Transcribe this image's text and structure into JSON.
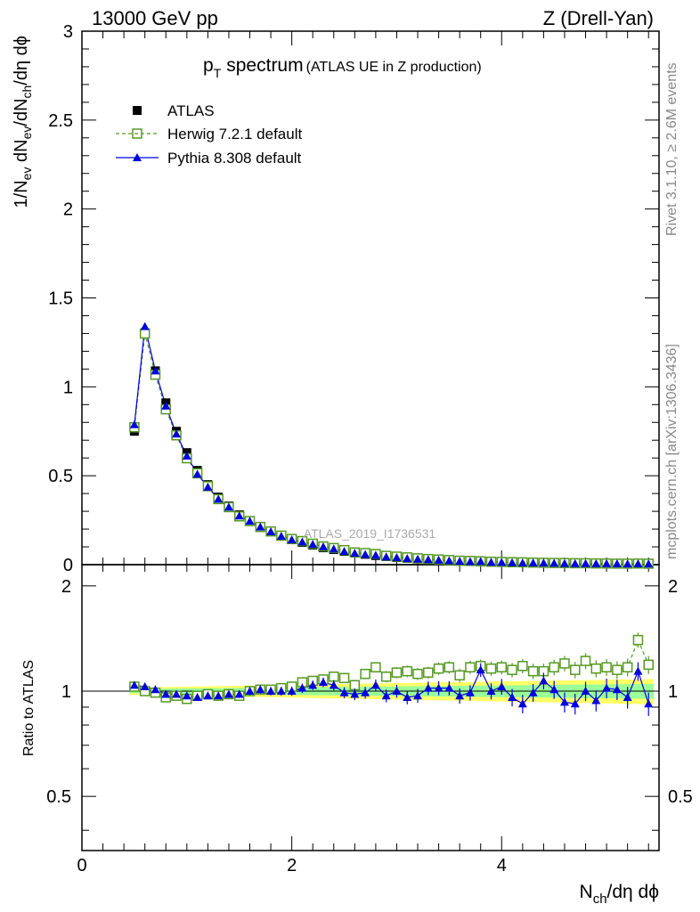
{
  "header": {
    "left": "13000 GeV pp",
    "right": "Z (Drell-Yan)"
  },
  "side_labels": {
    "rivet": "Rivet 3.1.10, ≥ 2.6M events",
    "mcplots": "mcplots.cern.ch [arXiv:1306.3436]"
  },
  "colors": {
    "atlas": "#000000",
    "herwig": "#559922",
    "pythia": "#0000dd",
    "band_inner": "#ffff66",
    "band_outer": "#99ff99"
  },
  "chart_data": {
    "type": "line",
    "title_main": "p",
    "title_sub": "T",
    "title_rest": "spectrum",
    "title_paren": "(ATLAS UE in Z production)",
    "watermark": "ATLAS_2019_I1736531",
    "ylabel_top": "1/N_ev dN_ev/dN_ch/dη dϕ",
    "ylabel_bottom": "Ratio to ATLAS",
    "xlabel": "N_ch/dη dϕ",
    "xlim": [
      0,
      5.5
    ],
    "ylim_top": [
      0,
      3
    ],
    "ylim_bottom": [
      0.35,
      2.3
    ],
    "xticks": [
      "0",
      "2",
      "4"
    ],
    "yticks_top": [
      "0",
      "0.5",
      "1",
      "1.5",
      "2",
      "2.5",
      "3"
    ],
    "yticks_bottom": [
      "0.5",
      "1",
      "2"
    ],
    "legend": [
      "ATLAS",
      "Herwig 7.2.1 default",
      "Pythia 8.308 default"
    ],
    "x": [
      0.5,
      0.6,
      0.7,
      0.8,
      0.9,
      1.0,
      1.1,
      1.2,
      1.3,
      1.4,
      1.5,
      1.6,
      1.7,
      1.8,
      1.9,
      2.0,
      2.1,
      2.2,
      2.3,
      2.4,
      2.5,
      2.6,
      2.7,
      2.8,
      2.9,
      3.0,
      3.1,
      3.2,
      3.3,
      3.4,
      3.5,
      3.6,
      3.7,
      3.8,
      3.9,
      4.0,
      4.1,
      4.2,
      4.3,
      4.4,
      4.5,
      4.6,
      4.7,
      4.8,
      4.9,
      5.0,
      5.1,
      5.2,
      5.3,
      5.4
    ],
    "atlas": [
      0.75,
      1.3,
      1.09,
      0.91,
      0.75,
      0.63,
      0.53,
      0.45,
      0.38,
      0.33,
      0.28,
      0.245,
      0.21,
      0.185,
      0.16,
      0.14,
      0.125,
      0.11,
      0.095,
      0.085,
      0.075,
      0.066,
      0.058,
      0.051,
      0.045,
      0.04,
      0.036,
      0.032,
      0.028,
      0.025,
      0.022,
      0.02,
      0.018,
      0.016,
      0.014,
      0.013,
      0.012,
      0.011,
      0.01,
      0.009,
      0.008,
      0.0075,
      0.007,
      0.0065,
      0.006,
      0.0055,
      0.005,
      0.0048,
      0.0046,
      0.0045
    ],
    "herwig_ratio": [
      1.03,
      1.0,
      0.99,
      0.96,
      0.97,
      0.95,
      0.97,
      0.98,
      0.97,
      0.98,
      0.97,
      1.0,
      1.01,
      1.01,
      1.02,
      1.03,
      1.06,
      1.07,
      1.08,
      1.1,
      1.09,
      1.04,
      1.12,
      1.17,
      1.1,
      1.13,
      1.14,
      1.12,
      1.13,
      1.16,
      1.17,
      1.11,
      1.17,
      1.18,
      1.16,
      1.17,
      1.15,
      1.18,
      1.14,
      1.14,
      1.17,
      1.2,
      1.15,
      1.22,
      1.16,
      1.17,
      1.15,
      1.17,
      1.4,
      1.19
    ],
    "pythia_ratio": [
      1.04,
      1.03,
      1.01,
      0.98,
      0.98,
      0.97,
      0.96,
      0.97,
      0.97,
      0.98,
      0.98,
      1.0,
      1.01,
      1.0,
      1.0,
      1.0,
      1.02,
      1.04,
      1.06,
      1.04,
      0.99,
      0.98,
      0.99,
      1.04,
      0.97,
      1.0,
      0.96,
      0.97,
      1.02,
      1.02,
      1.02,
      0.97,
      0.99,
      1.15,
      1.0,
      1.03,
      0.96,
      0.92,
      0.99,
      1.07,
      1.01,
      0.93,
      0.92,
      1.0,
      0.94,
      1.02,
      1.01,
      0.96,
      1.14,
      0.92
    ]
  }
}
